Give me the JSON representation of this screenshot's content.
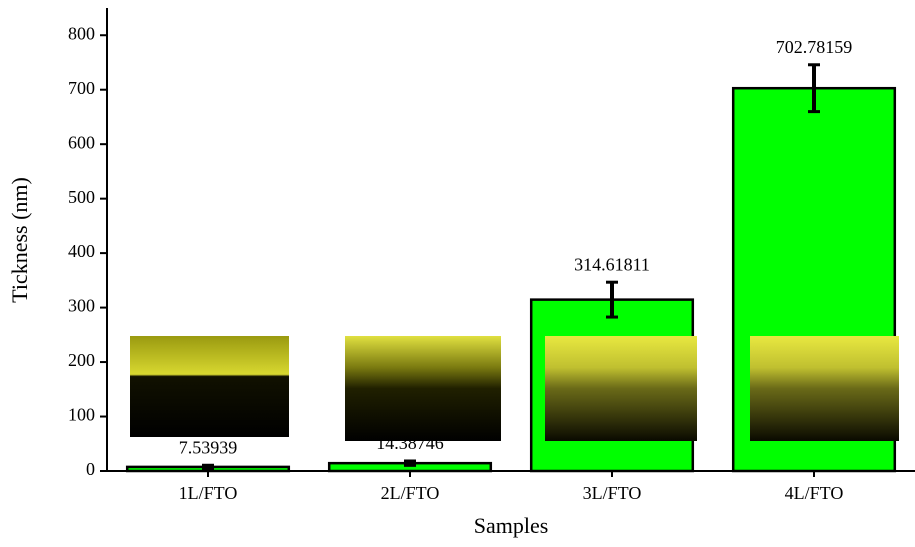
{
  "chart_data": {
    "type": "bar",
    "xlabel": "Samples",
    "ylabel": "Tickness (nm)",
    "categories": [
      "1L/FTO",
      "2L/FTO",
      "3L/FTO",
      "4L/FTO"
    ],
    "values": [
      7.53939,
      14.38746,
      314.61811,
      702.78159
    ],
    "errors": [
      3,
      4,
      32,
      43
    ],
    "color": "#00ff00",
    "ylim": [
      0,
      850
    ],
    "yticks": [
      0,
      100,
      200,
      300,
      400,
      500,
      600,
      700,
      800
    ],
    "grid": false
  }
}
